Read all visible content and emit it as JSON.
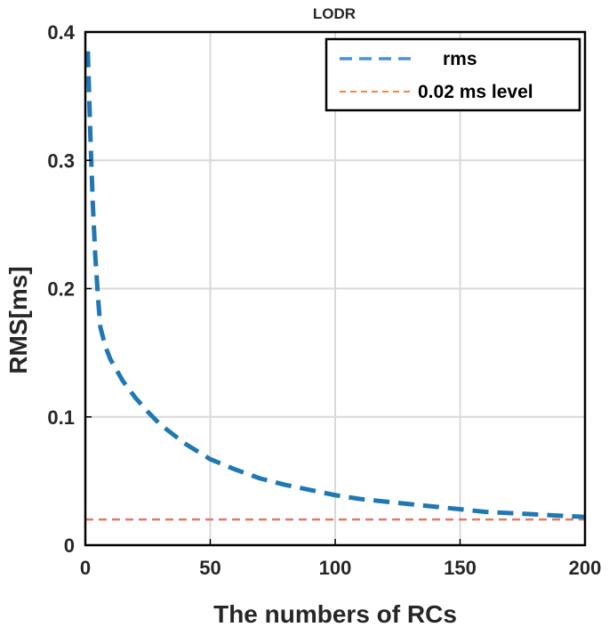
{
  "chart_data": {
    "type": "line",
    "title": "LODR",
    "xlabel": "The numbers of RCs",
    "ylabel": "RMS[ms]",
    "xlim": [
      0,
      200
    ],
    "ylim": [
      0,
      0.4
    ],
    "xticks": [
      0,
      50,
      100,
      150,
      200
    ],
    "xtick_labels": [
      "0",
      "50",
      "100",
      "150",
      "200"
    ],
    "yticks": [
      0,
      0.1,
      0.2,
      0.3,
      0.4
    ],
    "ytick_labels": [
      "0",
      "0.1",
      "0.2",
      "0.3",
      "0.4"
    ],
    "grid": true,
    "legend_position": "top-right",
    "series": [
      {
        "name": "rms",
        "style": "dashed",
        "color": "#1f77b4",
        "x": [
          1,
          2,
          3,
          4,
          5,
          6,
          8,
          10,
          15,
          20,
          25,
          30,
          40,
          50,
          60,
          70,
          80,
          90,
          100,
          110,
          120,
          130,
          140,
          150,
          160,
          170,
          180,
          190,
          200
        ],
        "y": [
          0.385,
          0.32,
          0.265,
          0.225,
          0.195,
          0.17,
          0.155,
          0.145,
          0.128,
          0.115,
          0.104,
          0.094,
          0.079,
          0.067,
          0.059,
          0.052,
          0.047,
          0.043,
          0.039,
          0.036,
          0.034,
          0.032,
          0.03,
          0.028,
          0.026,
          0.025,
          0.024,
          0.023,
          0.022
        ]
      },
      {
        "name": "0.02 ms level",
        "style": "dashed",
        "color": "#e07b6a",
        "x": [
          0,
          200
        ],
        "y": [
          0.02,
          0.02
        ]
      }
    ]
  }
}
